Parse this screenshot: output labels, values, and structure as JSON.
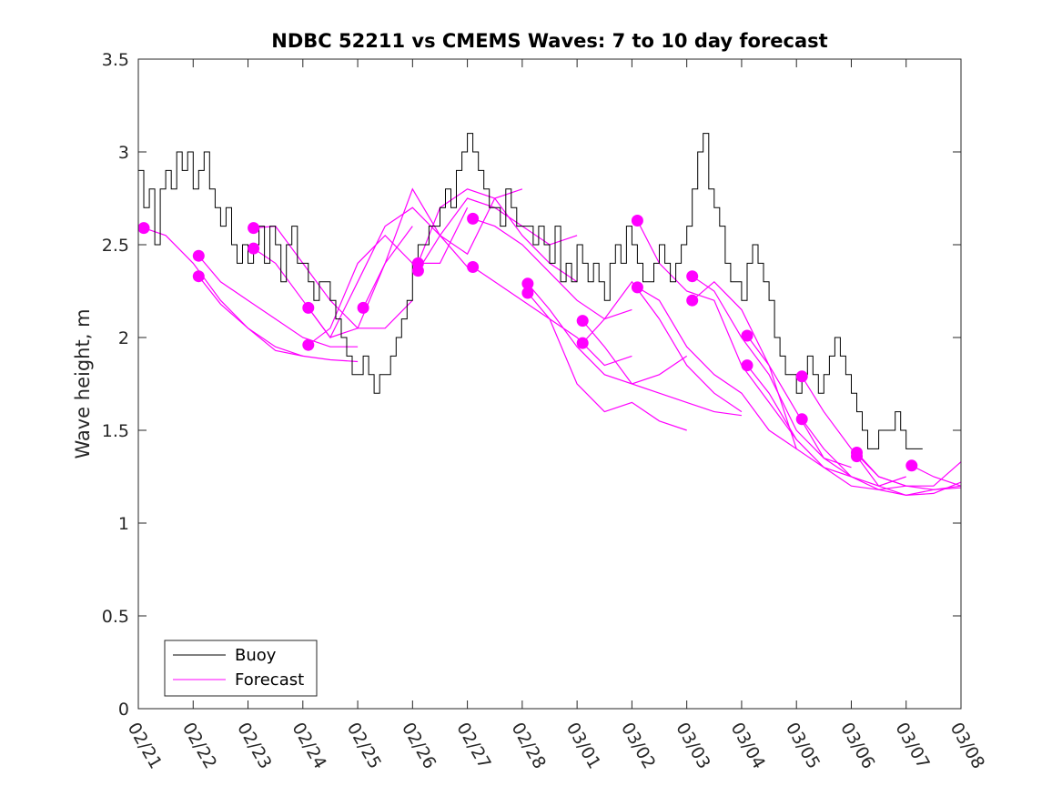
{
  "chart_data": {
    "type": "line",
    "title": "NDBC 52211 vs CMEMS Waves: 7 to 10 day forecast",
    "xlabel": "",
    "ylabel": "Wave height, m",
    "xlim": [
      0,
      15
    ],
    "ylim": [
      0,
      3.5
    ],
    "x_tick_labels": [
      "02/21",
      "02/22",
      "02/23",
      "02/24",
      "02/25",
      "02/26",
      "02/27",
      "02/28",
      "03/01",
      "03/02",
      "03/03",
      "03/04",
      "03/05",
      "03/06",
      "03/07",
      "03/08"
    ],
    "y_ticks": [
      0,
      0.5,
      1,
      1.5,
      2,
      2.5,
      3,
      3.5
    ],
    "y_tick_labels": [
      "0",
      "0.5",
      "1",
      "1.5",
      "2",
      "2.5",
      "3",
      "3.5"
    ],
    "grid": false,
    "legend": {
      "position": "bottom-left",
      "entries": [
        "Buoy",
        "Forecast"
      ]
    },
    "colors": {
      "buoy": "#000000",
      "forecast": "#ff00ff"
    },
    "buoy": {
      "name": "Buoy",
      "x": [
        0,
        0.1,
        0.2,
        0.3,
        0.4,
        0.5,
        0.6,
        0.7,
        0.8,
        0.9,
        1.0,
        1.1,
        1.2,
        1.3,
        1.4,
        1.5,
        1.6,
        1.7,
        1.8,
        1.9,
        2.0,
        2.1,
        2.2,
        2.3,
        2.4,
        2.5,
        2.6,
        2.7,
        2.8,
        2.9,
        3.0,
        3.1,
        3.2,
        3.3,
        3.4,
        3.5,
        3.6,
        3.7,
        3.8,
        3.9,
        4.0,
        4.1,
        4.2,
        4.3,
        4.4,
        4.5,
        4.6,
        4.7,
        4.8,
        4.9,
        5.0,
        5.1,
        5.2,
        5.3,
        5.4,
        5.5,
        5.6,
        5.7,
        5.8,
        5.9,
        6.0,
        6.1,
        6.2,
        6.3,
        6.4,
        6.5,
        6.6,
        6.7,
        6.8,
        6.9,
        7.0,
        7.1,
        7.2,
        7.3,
        7.4,
        7.5,
        7.6,
        7.7,
        7.8,
        7.9,
        8.0,
        8.1,
        8.2,
        8.3,
        8.4,
        8.5,
        8.6,
        8.7,
        8.8,
        8.9,
        9.0,
        9.1,
        9.2,
        9.3,
        9.4,
        9.5,
        9.6,
        9.7,
        9.8,
        9.9,
        10.0,
        10.1,
        10.2,
        10.3,
        10.4,
        10.5,
        10.6,
        10.7,
        10.8,
        10.9,
        11.0,
        11.1,
        11.2,
        11.3,
        11.4,
        11.5,
        11.6,
        11.7,
        11.8,
        11.9,
        12.0,
        12.1,
        12.2,
        12.3,
        12.4,
        12.5,
        12.6,
        12.7,
        12.8,
        12.9,
        13.0,
        13.1,
        13.2,
        13.3,
        13.4,
        13.5,
        13.6,
        13.7,
        13.8,
        13.9,
        14.0,
        14.1,
        14.2,
        14.3
      ],
      "values": [
        2.9,
        2.7,
        2.8,
        2.5,
        2.8,
        2.9,
        2.8,
        3.0,
        2.9,
        3.0,
        2.8,
        2.9,
        3.0,
        2.8,
        2.7,
        2.6,
        2.7,
        2.5,
        2.4,
        2.5,
        2.4,
        2.5,
        2.6,
        2.4,
        2.6,
        2.5,
        2.3,
        2.5,
        2.6,
        2.4,
        2.4,
        2.3,
        2.2,
        2.3,
        2.3,
        2.2,
        2.1,
        2.0,
        1.9,
        1.8,
        1.8,
        1.9,
        1.8,
        1.7,
        1.8,
        1.8,
        1.9,
        2.0,
        2.1,
        2.2,
        2.4,
        2.5,
        2.5,
        2.6,
        2.6,
        2.7,
        2.8,
        2.7,
        2.9,
        3.0,
        3.1,
        3.0,
        2.9,
        2.8,
        2.7,
        2.7,
        2.6,
        2.8,
        2.7,
        2.6,
        2.6,
        2.6,
        2.5,
        2.6,
        2.5,
        2.4,
        2.6,
        2.3,
        2.4,
        2.3,
        2.5,
        2.4,
        2.3,
        2.4,
        2.3,
        2.2,
        2.4,
        2.5,
        2.4,
        2.6,
        2.5,
        2.4,
        2.3,
        2.3,
        2.4,
        2.5,
        2.4,
        2.3,
        2.4,
        2.5,
        2.6,
        2.8,
        3.0,
        3.1,
        2.8,
        2.7,
        2.6,
        2.4,
        2.3,
        2.3,
        2.2,
        2.4,
        2.5,
        2.4,
        2.3,
        2.2,
        2.0,
        1.9,
        1.8,
        1.8,
        1.7,
        1.8,
        1.9,
        1.8,
        1.7,
        1.8,
        1.9,
        2.0,
        1.9,
        1.8,
        1.7,
        1.6,
        1.5,
        1.4,
        1.4,
        1.5,
        1.5,
        1.5,
        1.6,
        1.5,
        1.4,
        1.4,
        1.4,
        1.4
      ]
    },
    "forecast": {
      "name": "Forecast",
      "series": [
        {
          "x": [
            0.1,
            0.5,
            1.0,
            1.5,
            2.0,
            2.5,
            3.0
          ],
          "values": [
            2.59,
            2.55,
            2.4,
            2.2,
            2.05,
            1.93,
            1.9
          ]
        },
        {
          "x": [
            1.1,
            1.5,
            2.0,
            2.5,
            3.0,
            3.5,
            4.0
          ],
          "values": [
            2.44,
            2.3,
            2.2,
            2.1,
            2.0,
            1.95,
            1.95
          ]
        },
        {
          "x": [
            1.1,
            1.5,
            2.0,
            2.5,
            3.0,
            3.5,
            4.0
          ],
          "values": [
            2.33,
            2.18,
            2.05,
            1.95,
            1.9,
            1.88,
            1.87
          ]
        },
        {
          "x": [
            2.1,
            2.5,
            3.0,
            3.5,
            4.0,
            4.5,
            5.0
          ],
          "values": [
            2.59,
            2.6,
            2.4,
            2.2,
            2.05,
            2.05,
            2.2
          ]
        },
        {
          "x": [
            2.1,
            2.5,
            3.0,
            3.5,
            4.0,
            4.5,
            5.0
          ],
          "values": [
            2.48,
            2.4,
            2.2,
            2.0,
            2.05,
            2.4,
            2.6
          ]
        },
        {
          "x": [
            3.1,
            3.5,
            4.0,
            4.5,
            5.0,
            5.5,
            6.0
          ],
          "values": [
            2.16,
            2.0,
            2.3,
            2.6,
            2.7,
            2.55,
            2.38
          ]
        },
        {
          "x": [
            3.1,
            3.5,
            4.0,
            4.5,
            5.0,
            5.5,
            6.0
          ],
          "values": [
            1.96,
            2.05,
            2.4,
            2.55,
            2.4,
            2.4,
            2.7
          ]
        },
        {
          "x": [
            4.1,
            4.5,
            5.0,
            5.5,
            6.0,
            6.5,
            7.0
          ],
          "values": [
            2.16,
            2.4,
            2.8,
            2.55,
            2.45,
            2.75,
            2.8
          ]
        },
        {
          "x": [
            5.1,
            5.5,
            6.0,
            6.5,
            7.0,
            7.5,
            8.0
          ],
          "values": [
            2.4,
            2.7,
            2.8,
            2.75,
            2.55,
            2.4,
            2.3
          ]
        },
        {
          "x": [
            5.1,
            5.5,
            6.0,
            6.5,
            7.0,
            7.5,
            8.0
          ],
          "values": [
            2.36,
            2.55,
            2.75,
            2.7,
            2.6,
            2.5,
            2.55
          ]
        },
        {
          "x": [
            6.1,
            6.5,
            7.0,
            7.5,
            8.0,
            8.5,
            9.0
          ],
          "values": [
            2.64,
            2.6,
            2.5,
            2.35,
            2.2,
            2.1,
            2.15
          ]
        },
        {
          "x": [
            6.1,
            6.5,
            7.0,
            7.5,
            8.0,
            8.5,
            9.0
          ],
          "values": [
            2.38,
            2.3,
            2.2,
            2.1,
            2.0,
            1.85,
            1.9
          ]
        },
        {
          "x": [
            7.1,
            7.5,
            8.0,
            8.5,
            9.0,
            9.5,
            10.0
          ],
          "values": [
            2.29,
            2.15,
            1.95,
            1.8,
            1.75,
            1.8,
            1.9
          ]
        },
        {
          "x": [
            7.1,
            7.5,
            8.0,
            8.5,
            9.0,
            9.5,
            10.0
          ],
          "values": [
            2.24,
            2.1,
            1.75,
            1.6,
            1.65,
            1.55,
            1.5
          ]
        },
        {
          "x": [
            8.1,
            8.5,
            9.0,
            9.5,
            10.0,
            10.5,
            11.0
          ],
          "values": [
            2.09,
            1.95,
            1.75,
            1.7,
            1.65,
            1.6,
            1.58
          ]
        },
        {
          "x": [
            8.1,
            8.5,
            9.0,
            9.5,
            10.0,
            10.5,
            11.0
          ],
          "values": [
            1.97,
            2.1,
            2.3,
            2.1,
            1.85,
            1.7,
            1.6
          ]
        },
        {
          "x": [
            9.1,
            9.5,
            10.0,
            10.5,
            11.0,
            11.5,
            12.0
          ],
          "values": [
            2.63,
            2.4,
            2.25,
            2.2,
            1.85,
            1.65,
            1.45
          ]
        },
        {
          "x": [
            9.1,
            9.5,
            10.0,
            10.5,
            11.0,
            11.5,
            12.0
          ],
          "values": [
            2.27,
            2.2,
            1.95,
            1.8,
            1.7,
            1.5,
            1.4
          ]
        },
        {
          "x": [
            10.1,
            10.5,
            11.0,
            11.5,
            12.0,
            12.5,
            13.0
          ],
          "values": [
            2.33,
            2.25,
            2.0,
            1.8,
            1.5,
            1.35,
            1.3
          ]
        },
        {
          "x": [
            10.1,
            10.5,
            11.0,
            11.5,
            12.0,
            12.5,
            13.0
          ],
          "values": [
            2.2,
            2.3,
            2.15,
            1.85,
            1.4,
            1.3,
            1.25
          ]
        },
        {
          "x": [
            11.1,
            11.5,
            12.0,
            12.5,
            13.0,
            13.5,
            14.0
          ],
          "values": [
            2.01,
            1.85,
            1.6,
            1.35,
            1.25,
            1.2,
            1.25
          ]
        },
        {
          "x": [
            11.1,
            11.5,
            12.0,
            12.5,
            13.0,
            13.5,
            14.0
          ],
          "values": [
            1.85,
            1.7,
            1.45,
            1.3,
            1.2,
            1.18,
            1.2
          ]
        },
        {
          "x": [
            12.1,
            12.5,
            13.0,
            13.5,
            14.0,
            14.5,
            15.0
          ],
          "values": [
            1.79,
            1.6,
            1.4,
            1.25,
            1.2,
            1.2,
            1.33
          ]
        },
        {
          "x": [
            12.1,
            12.5,
            13.0,
            13.5,
            14.0,
            14.5,
            15.0
          ],
          "values": [
            1.56,
            1.4,
            1.25,
            1.18,
            1.15,
            1.18,
            1.2
          ]
        },
        {
          "x": [
            13.1,
            13.5,
            14.0,
            14.5,
            15.0
          ],
          "values": [
            1.38,
            1.25,
            1.2,
            1.18,
            1.19
          ]
        },
        {
          "x": [
            13.1,
            13.5,
            14.0,
            14.5,
            15.0
          ],
          "values": [
            1.36,
            1.2,
            1.15,
            1.16,
            1.22
          ]
        },
        {
          "x": [
            14.1,
            14.5,
            15.0
          ],
          "values": [
            1.31,
            1.25,
            1.2
          ]
        }
      ]
    },
    "forecast_markers": {
      "x": [
        0.1,
        1.1,
        1.1,
        2.1,
        2.1,
        3.1,
        3.1,
        4.1,
        5.1,
        5.1,
        6.1,
        6.1,
        7.1,
        7.1,
        8.1,
        8.1,
        9.1,
        9.1,
        10.1,
        10.1,
        11.1,
        11.1,
        12.1,
        12.1,
        13.1,
        13.1,
        14.1
      ],
      "values": [
        2.59,
        2.44,
        2.33,
        2.59,
        2.48,
        2.16,
        1.96,
        2.16,
        2.4,
        2.36,
        2.64,
        2.38,
        2.29,
        2.24,
        2.09,
        1.97,
        2.63,
        2.27,
        2.33,
        2.2,
        2.01,
        1.85,
        1.79,
        1.56,
        1.38,
        1.36,
        1.31
      ]
    }
  }
}
